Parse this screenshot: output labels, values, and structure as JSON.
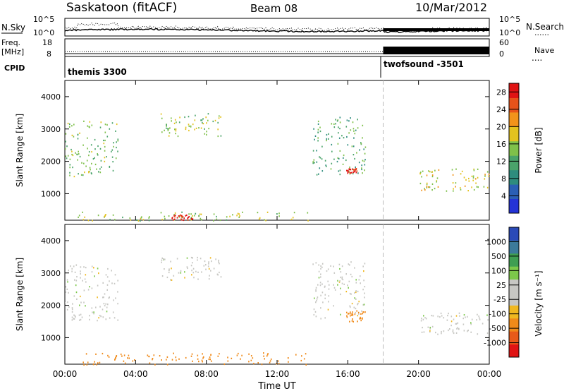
{
  "header": {
    "station": "Saskatoon (fitACF)",
    "beam": "Beam 08",
    "date": "10/Mar/2012"
  },
  "labels": {
    "nsky": "N.Sky",
    "nsearch": "N.Search",
    "freq": "Freq.",
    "freq_unit": "[MHz]",
    "cpid": "CPID",
    "nave": "Nave",
    "dots": "......",
    "dots_short": "....",
    "time_axis": "Time UT",
    "slant_range": "Slant Range [km]",
    "power_label": "Power [dB]",
    "velocity_label": "Velocity [m s⁻¹]"
  },
  "top_axes": {
    "noise_ticks": [
      "10^5",
      "10^0"
    ],
    "noise_ticks_right": [
      "10^5",
      "10^0"
    ],
    "freq_ticks": [
      "18",
      "8"
    ],
    "nave_ticks": [
      "60",
      "0"
    ]
  },
  "cpid_segments": [
    {
      "label": "themis 3300",
      "start_hour": 0,
      "end_hour": 18
    },
    {
      "label": "twofsound -3501",
      "start_hour": 18,
      "end_hour": 24
    }
  ],
  "colors": {
    "power": [
      "#2433d6",
      "#2b5fb5",
      "#2e8c7e",
      "#4aa36a",
      "#7fc04a",
      "#e3c21f",
      "#f2931b",
      "#e8531a",
      "#e01414"
    ],
    "velocity": [
      "#2a4ab8",
      "#3c7a9a",
      "#3f9e52",
      "#7cc84a",
      "#c7c7c3",
      "#c7c7c3",
      "#f0b820",
      "#f08a1a",
      "#e85a1a",
      "#e01414"
    ]
  },
  "chart_data": [
    {
      "type": "heatmap",
      "title": "Power",
      "xlabel": "Time UT",
      "ylabel": "Slant Range [km]",
      "x_ticks": [
        "00:00",
        "04:00",
        "08:00",
        "12:00",
        "16:00",
        "20:00",
        "00:00"
      ],
      "xlim_hours": [
        0,
        24
      ],
      "ylim_km": [
        180,
        4500
      ],
      "y_ticks": [
        1000,
        2000,
        3000,
        4000
      ],
      "colorbar_label": "Power [dB]",
      "colorbar_ticks": [
        4,
        8,
        12,
        16,
        20,
        24,
        28
      ],
      "colorbar_range": [
        0,
        30
      ],
      "mode_change_hour": 18,
      "echo_regions": [
        {
          "t_start": 0.0,
          "t_end": 3.0,
          "r_start": 1550,
          "r_end": 3300,
          "value": 14,
          "note": "rising band"
        },
        {
          "t_start": 5.4,
          "t_end": 8.8,
          "r_start": 2800,
          "r_end": 3500,
          "value": 16
        },
        {
          "t_start": 14.0,
          "t_end": 17.0,
          "r_start": 1600,
          "r_end": 3400,
          "value": 12
        },
        {
          "t_start": 15.9,
          "t_end": 16.5,
          "r_start": 1650,
          "r_end": 1800,
          "value": 28
        },
        {
          "t_start": 20.0,
          "t_end": 24.0,
          "r_start": 1100,
          "r_end": 1800,
          "value": 18
        },
        {
          "t_start": 0.7,
          "t_end": 13.8,
          "r_start": 180,
          "r_end": 450,
          "value": 16,
          "note": "near-range band"
        },
        {
          "t_start": 6.0,
          "t_end": 7.2,
          "r_start": 200,
          "r_end": 380,
          "value": 28
        }
      ]
    },
    {
      "type": "heatmap",
      "title": "Velocity",
      "xlabel": "Time UT",
      "ylabel": "Slant Range [km]",
      "x_ticks": [
        "00:00",
        "04:00",
        "08:00",
        "12:00",
        "16:00",
        "20:00",
        "00:00"
      ],
      "xlim_hours": [
        0,
        24
      ],
      "ylim_km": [
        180,
        4500
      ],
      "y_ticks": [
        1000,
        2000,
        3000,
        4000
      ],
      "colorbar_label": "Velocity [m s⁻¹]",
      "colorbar_ticks": [
        1000,
        500,
        100,
        25,
        -25,
        -100,
        -500,
        -1000
      ],
      "mode_change_hour": 18,
      "echo_regions": [
        {
          "t_start": 0.0,
          "t_end": 3.0,
          "r_start": 1550,
          "r_end": 3300,
          "value": 0
        },
        {
          "t_start": 5.4,
          "t_end": 8.8,
          "r_start": 2800,
          "r_end": 3500,
          "value": 0
        },
        {
          "t_start": 14.0,
          "t_end": 17.0,
          "r_start": 1600,
          "r_end": 3400,
          "value": 0
        },
        {
          "t_start": 15.9,
          "t_end": 17.0,
          "r_start": 1500,
          "r_end": 1850,
          "value": -300
        },
        {
          "t_start": 20.0,
          "t_end": 24.0,
          "r_start": 1100,
          "r_end": 1800,
          "value": 0
        },
        {
          "t_start": 0.7,
          "t_end": 13.8,
          "r_start": 180,
          "r_end": 550,
          "value": -200
        }
      ]
    }
  ]
}
